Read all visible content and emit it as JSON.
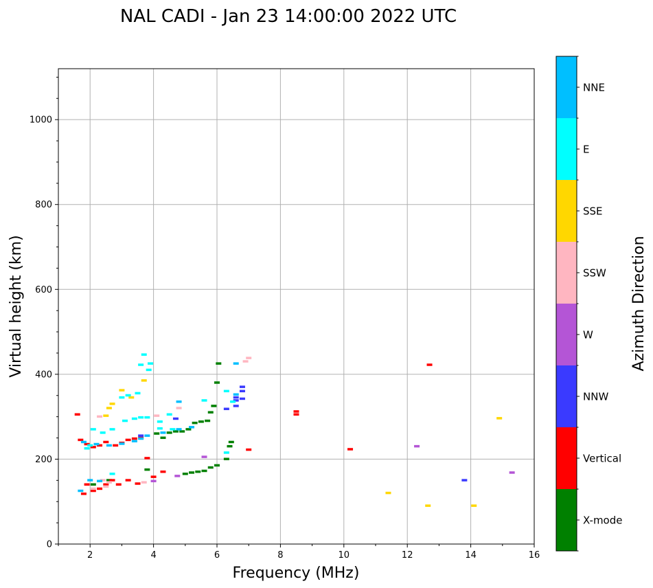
{
  "chart_data": {
    "type": "scatter",
    "title": "NAL CADI - Jan 23 14:00:00 2022 UTC",
    "xlabel": "Frequency (MHz)",
    "ylabel": "Virtual height (km)",
    "xlim": [
      1,
      16
    ],
    "ylim": [
      0,
      1120
    ],
    "xticks": [
      2,
      4,
      6,
      8,
      10,
      12,
      14,
      16
    ],
    "yticks": [
      0,
      200,
      400,
      600,
      800,
      1000
    ],
    "grid": true,
    "colorbar": {
      "title": "Azimuth Direction",
      "categories": [
        {
          "label": "X-mode",
          "color": "#008000"
        },
        {
          "label": "Vertical",
          "color": "#ff0000"
        },
        {
          "label": "NNW",
          "color": "#3a3aff"
        },
        {
          "label": "W",
          "color": "#b455d6"
        },
        {
          "label": "SSW",
          "color": "#ffb6c1"
        },
        {
          "label": "SSE",
          "color": "#ffd700"
        },
        {
          "label": "E",
          "color": "#00ffff"
        },
        {
          "label": "NNE",
          "color": "#00bfff"
        }
      ]
    },
    "series": [
      {
        "name": "X-mode",
        "points": [
          [
            3.8,
            175
          ],
          [
            4.1,
            260
          ],
          [
            4.3,
            250
          ],
          [
            4.5,
            262
          ],
          [
            4.7,
            265
          ],
          [
            4.9,
            265
          ],
          [
            5.1,
            270
          ],
          [
            5.3,
            285
          ],
          [
            5.5,
            288
          ],
          [
            5.7,
            290
          ],
          [
            5.8,
            310
          ],
          [
            5.9,
            325
          ],
          [
            6.0,
            380
          ],
          [
            6.05,
            425
          ],
          [
            6.0,
            185
          ],
          [
            5.8,
            180
          ],
          [
            5.6,
            172
          ],
          [
            5.4,
            170
          ],
          [
            5.2,
            168
          ],
          [
            5.0,
            165
          ],
          [
            6.4,
            230
          ],
          [
            6.45,
            240
          ],
          [
            6.3,
            200
          ],
          [
            2.1,
            140
          ],
          [
            2.6,
            150
          ]
        ]
      },
      {
        "name": "Vertical",
        "points": [
          [
            1.6,
            305
          ],
          [
            1.7,
            245
          ],
          [
            1.9,
            235
          ],
          [
            2.1,
            228
          ],
          [
            2.3,
            232
          ],
          [
            2.5,
            240
          ],
          [
            2.8,
            232
          ],
          [
            3.0,
            238
          ],
          [
            3.2,
            245
          ],
          [
            3.4,
            248
          ],
          [
            3.6,
            250
          ],
          [
            3.8,
            202
          ],
          [
            4.0,
            158
          ],
          [
            3.5,
            142
          ],
          [
            3.2,
            150
          ],
          [
            2.9,
            140
          ],
          [
            2.7,
            150
          ],
          [
            2.5,
            140
          ],
          [
            2.3,
            130
          ],
          [
            2.1,
            125
          ],
          [
            1.9,
            140
          ],
          [
            1.8,
            118
          ],
          [
            4.3,
            170
          ],
          [
            7.0,
            222
          ],
          [
            8.5,
            312
          ],
          [
            8.5,
            305
          ],
          [
            10.2,
            223
          ],
          [
            12.7,
            422
          ]
        ]
      },
      {
        "name": "NNW",
        "points": [
          [
            6.3,
            318
          ],
          [
            6.6,
            325
          ],
          [
            6.6,
            338
          ],
          [
            6.6,
            345
          ],
          [
            6.8,
            342
          ],
          [
            6.8,
            360
          ],
          [
            6.8,
            370
          ],
          [
            4.7,
            295
          ],
          [
            3.6,
            255
          ],
          [
            13.8,
            150
          ]
        ]
      },
      {
        "name": "W",
        "points": [
          [
            4.0,
            148
          ],
          [
            4.75,
            160
          ],
          [
            5.6,
            205
          ],
          [
            12.3,
            230
          ],
          [
            15.3,
            168
          ]
        ]
      },
      {
        "name": "SSW",
        "points": [
          [
            6.9,
            430
          ],
          [
            7.0,
            438
          ],
          [
            4.1,
            302
          ],
          [
            4.8,
            320
          ],
          [
            2.3,
            300
          ],
          [
            2.4,
            150
          ],
          [
            2.5,
            135
          ],
          [
            2.6,
            145
          ],
          [
            2.1,
            130
          ],
          [
            3.7,
            145
          ]
        ]
      },
      {
        "name": "SSE",
        "points": [
          [
            2.5,
            302
          ],
          [
            2.6,
            320
          ],
          [
            2.7,
            330
          ],
          [
            3.0,
            362
          ],
          [
            3.3,
            345
          ],
          [
            3.7,
            385
          ],
          [
            11.4,
            120
          ],
          [
            12.65,
            90
          ],
          [
            14.1,
            90
          ],
          [
            14.9,
            296
          ]
        ]
      },
      {
        "name": "E",
        "points": [
          [
            3.7,
            446
          ],
          [
            3.85,
            410
          ],
          [
            3.9,
            425
          ],
          [
            3.6,
            422
          ],
          [
            3.5,
            355
          ],
          [
            3.2,
            350
          ],
          [
            3.0,
            345
          ],
          [
            3.4,
            295
          ],
          [
            3.6,
            298
          ],
          [
            3.8,
            298
          ],
          [
            4.2,
            288
          ],
          [
            4.5,
            305
          ],
          [
            5.6,
            338
          ],
          [
            6.3,
            360
          ],
          [
            6.5,
            335
          ],
          [
            6.3,
            215
          ],
          [
            2.1,
            270
          ],
          [
            2.4,
            262
          ],
          [
            2.7,
            270
          ],
          [
            3.1,
            290
          ],
          [
            4.2,
            272
          ],
          [
            4.6,
            270
          ],
          [
            1.9,
            225
          ],
          [
            2.0,
            232
          ],
          [
            2.7,
            165
          ]
        ]
      },
      {
        "name": "NNE",
        "points": [
          [
            6.6,
            425
          ],
          [
            6.6,
            352
          ],
          [
            4.8,
            270
          ],
          [
            4.3,
            262
          ],
          [
            3.8,
            255
          ],
          [
            1.8,
            240
          ],
          [
            2.2,
            235
          ],
          [
            2.6,
            232
          ],
          [
            3.0,
            236
          ],
          [
            3.4,
            242
          ],
          [
            3.6,
            248
          ],
          [
            2.0,
            150
          ],
          [
            2.3,
            148
          ],
          [
            1.7,
            125
          ],
          [
            4.8,
            335
          ],
          [
            5.2,
            275
          ]
        ]
      }
    ]
  }
}
